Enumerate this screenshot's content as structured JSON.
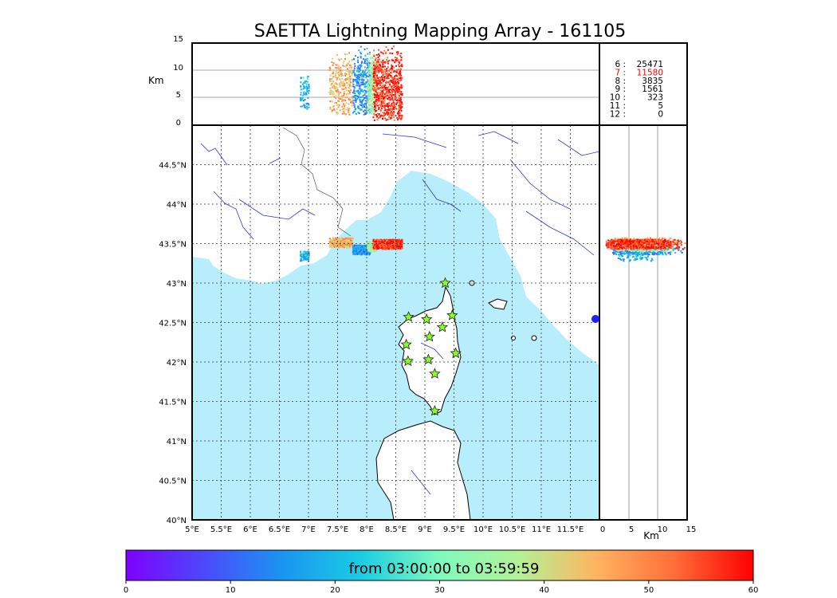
{
  "title": "SAETTA Lightning Mapping Array - 161105",
  "km_label": "Km",
  "top_panel": {
    "ylabel": "Km",
    "yticks": [
      "0",
      "5",
      "10",
      "15"
    ]
  },
  "right_panel": {
    "xlabel": "Km",
    "xticks": [
      "0",
      "5",
      "10",
      "15"
    ]
  },
  "stats": [
    {
      "label": "6 :",
      "value": "25471",
      "highlight": false
    },
    {
      "label": "7 :",
      "value": "11580",
      "highlight": true
    },
    {
      "label": "8 :",
      "value": "3835",
      "highlight": false
    },
    {
      "label": "9 :",
      "value": "1561",
      "highlight": false
    },
    {
      "label": "10 :",
      "value": "323",
      "highlight": false
    },
    {
      "label": "11 :",
      "value": "5",
      "highlight": false
    },
    {
      "label": "12 :",
      "value": "0",
      "highlight": false
    }
  ],
  "map": {
    "lon_ticks": [
      "5°E",
      "5.5°E",
      "6°E",
      "6.5°E",
      "7°E",
      "7.5°E",
      "8°E",
      "8.5°E",
      "9°E",
      "9.5°E",
      "10°E",
      "10.5°E",
      "11°E",
      "11.5°E"
    ],
    "lat_ticks": [
      "40°N",
      "40.5°N",
      "41°N",
      "41.5°N",
      "42°N",
      "42.5°N",
      "43°N",
      "43.5°N",
      "44°N",
      "44.5°N"
    ],
    "lon_range": [
      5,
      12
    ],
    "lat_range": [
      40,
      45
    ],
    "grid": true,
    "sea_color": "#b8eefc",
    "land_color": "#ffffff",
    "river_color": "#3333dd",
    "station_color": "#88ff22",
    "stations": [
      {
        "lon": 9.35,
        "lat": 43.0
      },
      {
        "lon": 8.72,
        "lat": 42.57
      },
      {
        "lon": 9.03,
        "lat": 42.54
      },
      {
        "lon": 9.47,
        "lat": 42.59
      },
      {
        "lon": 9.3,
        "lat": 42.44
      },
      {
        "lon": 9.08,
        "lat": 42.32
      },
      {
        "lon": 8.68,
        "lat": 42.22
      },
      {
        "lon": 9.53,
        "lat": 42.11
      },
      {
        "lon": 8.71,
        "lat": 42.01
      },
      {
        "lon": 9.06,
        "lat": 42.03
      },
      {
        "lon": 9.17,
        "lat": 41.85
      },
      {
        "lon": 9.17,
        "lat": 41.38
      }
    ]
  },
  "colorbar": {
    "label": "from 03:00:00 to 03:59:59",
    "ticks": [
      "0",
      "10",
      "20",
      "30",
      "40",
      "50",
      "60"
    ],
    "range": [
      0,
      60
    ],
    "colormap": "rainbow"
  },
  "chart_data": {
    "type": "scatter",
    "title": "SAETTA Lightning Mapping Array - 161105",
    "color_range_minutes": [
      0,
      60
    ],
    "clusters": [
      {
        "lon_range": [
          6.85,
          7.0
        ],
        "lat_center": 43.35,
        "alt_range_km": [
          3,
          10
        ],
        "time_min": 20
      },
      {
        "lon_range": [
          7.35,
          7.75
        ],
        "lat_center": 43.52,
        "alt_range_km": [
          2,
          14
        ],
        "time_min": 45
      },
      {
        "lon_range": [
          7.75,
          8.05
        ],
        "lat_center": 43.43,
        "alt_range_km": [
          2,
          15
        ],
        "time_min": 15
      },
      {
        "lon_range": [
          8.0,
          8.15
        ],
        "lat_center": 43.47,
        "alt_range_km": [
          2,
          14
        ],
        "time_min": 35
      },
      {
        "lon_range": [
          8.1,
          8.6
        ],
        "lat_center": 43.5,
        "alt_range_km": [
          1,
          15
        ],
        "time_min": 57
      }
    ]
  }
}
